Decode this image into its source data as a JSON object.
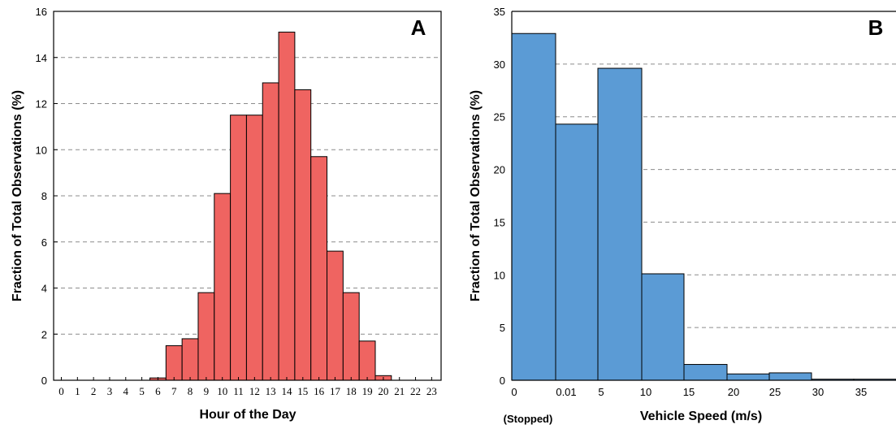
{
  "chart_data": [
    {
      "type": "bar",
      "panel_label": "A",
      "xlabel": "Hour of the Day",
      "ylabel": "Fraction of Total Observations (%)",
      "ylim": [
        0,
        16
      ],
      "yticks": [
        0,
        2,
        4,
        6,
        8,
        10,
        12,
        14,
        16
      ],
      "grid": true,
      "color": "#ef6461",
      "categories": [
        "0",
        "1",
        "2",
        "3",
        "4",
        "5",
        "6",
        "7",
        "8",
        "9",
        "10",
        "11",
        "12",
        "13",
        "14",
        "15",
        "16",
        "17",
        "18",
        "19",
        "20",
        "21",
        "22",
        "23"
      ],
      "values": [
        0,
        0,
        0,
        0,
        0,
        0,
        0.1,
        1.5,
        1.8,
        3.8,
        8.1,
        11.5,
        11.5,
        12.9,
        15.1,
        12.6,
        9.7,
        5.6,
        3.8,
        1.7,
        0.2,
        0,
        0,
        0
      ]
    },
    {
      "type": "bar",
      "panel_label": "B",
      "xlabel": "Vehicle Speed (m/s)",
      "ylabel": "Fraction of Total Observations (%)",
      "ylim": [
        0,
        35
      ],
      "yticks": [
        0,
        5,
        10,
        15,
        20,
        25,
        30,
        35
      ],
      "grid": true,
      "color": "#5b9bd5",
      "xtick_labels": [
        "0",
        "0.01",
        "5",
        "10",
        "15",
        "20",
        "25",
        "30",
        "35"
      ],
      "x_note": "(Stopped)",
      "bins": [
        "0",
        "0.01-5",
        "5-10",
        "10-15",
        "15-20",
        "20-25",
        "25-30",
        "30-35",
        "35-40"
      ],
      "values": [
        32.9,
        24.3,
        29.6,
        10.1,
        1.5,
        0.6,
        0.7,
        0.1,
        0.1
      ]
    }
  ]
}
